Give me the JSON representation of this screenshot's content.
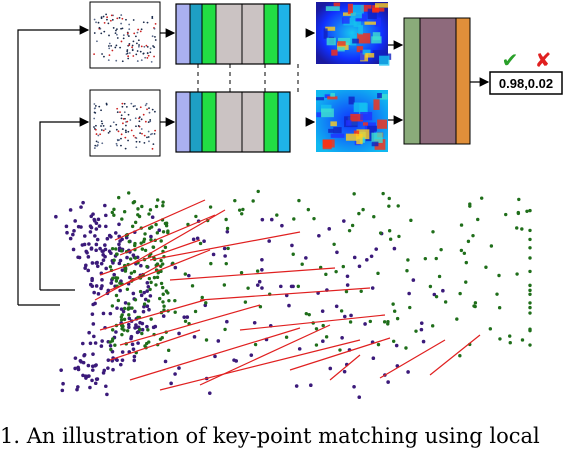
{
  "output": {
    "scores": "0.98,0.02",
    "match_mark": "✔",
    "nonmatch_mark": "✘"
  },
  "caption": "1. An illustration of key-point matching using local",
  "colors": {
    "purple_points": "#3b1a7a",
    "green_points": "#1f6e1a",
    "match_lines": "#e02020",
    "layer_lavender": "#aab0f0",
    "layer_teal": "#1e9fc4",
    "layer_green": "#22dd44",
    "layer_grey": "#cbc3c3",
    "layer_cyan": "#1fb3e8",
    "fc_green": "#8aab7a",
    "fc_mauve": "#8e6a7c",
    "fc_orange": "#e08f3a",
    "tick_green": "#2aa02a",
    "cross_red": "#e02020"
  },
  "icons": [
    "check-icon",
    "cross-icon"
  ]
}
